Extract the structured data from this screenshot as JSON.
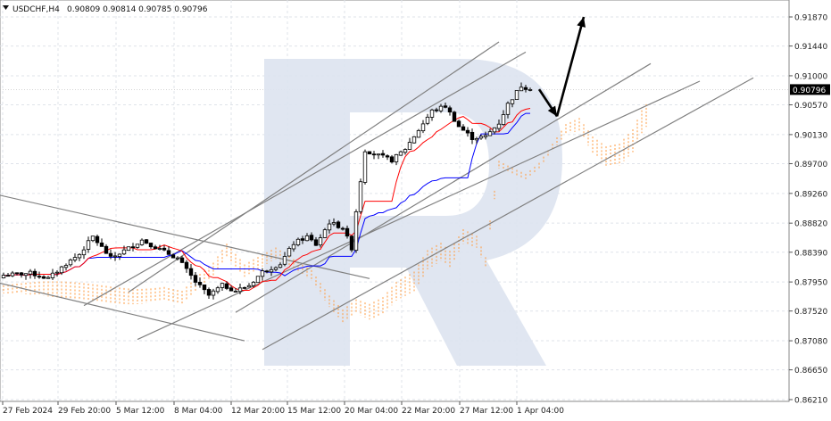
{
  "header": {
    "symbol": "USDCHF,H4",
    "quote": "0.90809 0.90814 0.90785 0.90796",
    "menu_icon": "triangle-down-icon"
  },
  "price_badge": {
    "value": "0.90796",
    "bg": "#000000",
    "fg": "#ffffff"
  },
  "colors": {
    "grid": "#dfe3ea",
    "tenkan": "#ff0000",
    "kijun": "#0000ff",
    "cloud": "#ff9a3c",
    "trend": "#808080",
    "arrow": "#000000",
    "watermark": "#dde3ef"
  },
  "chart_data": {
    "type": "candlestick",
    "title": "USDCHF,H4",
    "ylim": [
      0.8621,
      0.91925
    ],
    "yticks": [
      "0.91870",
      "0.91440",
      "0.91000",
      "0.90570",
      "0.90130",
      "0.89700",
      "0.89260",
      "0.88820",
      "0.88390",
      "0.87950",
      "0.87520",
      "0.87080",
      "0.86650",
      "0.86210"
    ],
    "xticks": [
      "27 Feb 2024",
      "29 Feb 20:00",
      "5 Mar 12:00",
      "8 Mar 04:00",
      "12 Mar 20:00",
      "15 Mar 12:00",
      "20 Mar 04:00",
      "22 Mar 20:00",
      "27 Mar 12:00",
      "1 Apr 04:00"
    ],
    "last_price": 0.90796,
    "close_path": [
      [
        0,
        0.8805
      ],
      [
        6,
        0.8808
      ],
      [
        10,
        0.88
      ],
      [
        14,
        0.8822
      ],
      [
        17,
        0.8836
      ],
      [
        20,
        0.8862
      ],
      [
        24,
        0.883
      ],
      [
        28,
        0.8845
      ],
      [
        31,
        0.8857
      ],
      [
        35,
        0.8843
      ],
      [
        39,
        0.883
      ],
      [
        43,
        0.8795
      ],
      [
        46,
        0.8775
      ],
      [
        49,
        0.879
      ],
      [
        52,
        0.8782
      ],
      [
        55,
        0.879
      ],
      [
        58,
        0.881
      ],
      [
        62,
        0.8822
      ],
      [
        65,
        0.8852
      ],
      [
        68,
        0.8862
      ],
      [
        70,
        0.885
      ],
      [
        73,
        0.8883
      ],
      [
        76,
        0.8875
      ],
      [
        78,
        0.8845
      ],
      [
        79,
        0.89
      ],
      [
        81,
        0.899
      ],
      [
        84,
        0.8982
      ],
      [
        87,
        0.8975
      ],
      [
        90,
        0.8992
      ],
      [
        93,
        0.902
      ],
      [
        96,
        0.9048
      ],
      [
        99,
        0.9055
      ],
      [
        102,
        0.9025
      ],
      [
        105,
        0.9008
      ],
      [
        108,
        0.901
      ],
      [
        111,
        0.903
      ],
      [
        113,
        0.9058
      ],
      [
        116,
        0.9085
      ],
      [
        118,
        0.908
      ]
    ],
    "indicators": [
      "Ichimoku Kinko Hyo: tenkan-sen",
      "kijun-sen",
      "kumo cloud"
    ],
    "trendlines": [
      {
        "x1": -2,
        "y1": 0.8925,
        "x2": 82,
        "y2": 0.88
      },
      {
        "x1": 18,
        "y1": 0.876,
        "x2": 117,
        "y2": 0.9135
      },
      {
        "x1": 28,
        "y1": 0.878,
        "x2": 111,
        "y2": 0.915
      },
      {
        "x1": 30,
        "y1": 0.871,
        "x2": 156,
        "y2": 0.9092
      },
      {
        "x1": 52,
        "y1": 0.875,
        "x2": 145,
        "y2": 0.9118
      },
      {
        "x1": 58,
        "y1": 0.8695,
        "x2": 168,
        "y2": 0.9097
      },
      {
        "x1": -2,
        "y1": 0.8795,
        "x2": 54,
        "y2": 0.8708
      }
    ],
    "forecast_arrows": [
      {
        "x1": 120,
        "y1": 0.908,
        "x2": 124,
        "y2": 0.904
      },
      {
        "x1": 124,
        "y1": 0.904,
        "x2": 130,
        "y2": 0.9187
      }
    ]
  }
}
